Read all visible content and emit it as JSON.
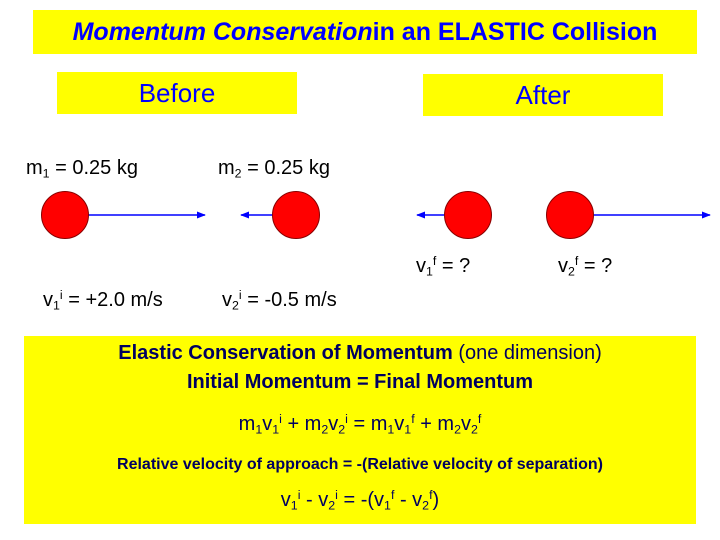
{
  "title": {
    "emphasis": "Momentum Conservation",
    "rest": " in an ELASTIC Collision"
  },
  "before": {
    "label": "Before",
    "m1": {
      "sym": "m",
      "sub": "1",
      "value": " = 0.25 kg"
    },
    "m2": {
      "sym": "m",
      "sub": "2",
      "value": " = 0.25 kg"
    },
    "v1": {
      "sym": "v",
      "sub": "1",
      "sup": "i",
      "value": " = +2.0 m/s"
    },
    "v2": {
      "sym": "v",
      "sub": "2",
      "sup": "i",
      "value": " = -0.5 m/s"
    }
  },
  "after": {
    "label": "After",
    "v1": {
      "sym": "v",
      "sub": "1",
      "sup": "f",
      "value": " = ?"
    },
    "v2": {
      "sym": "v",
      "sub": "2",
      "sup": "f",
      "value": " = ?"
    }
  },
  "summary": {
    "line1_bold": "Elastic Conservation of Momentum",
    "line1_rest": " (one dimension)",
    "line2": "Initial Momentum = Final Momentum",
    "line4": "Relative velocity of approach = -(Relative velocity of separation)"
  },
  "colors": {
    "highlight": "#ffff00",
    "title_text": "#0000ff",
    "ball": "#ff0000",
    "arrow": "#0000ff",
    "summary_text": "#000060"
  }
}
